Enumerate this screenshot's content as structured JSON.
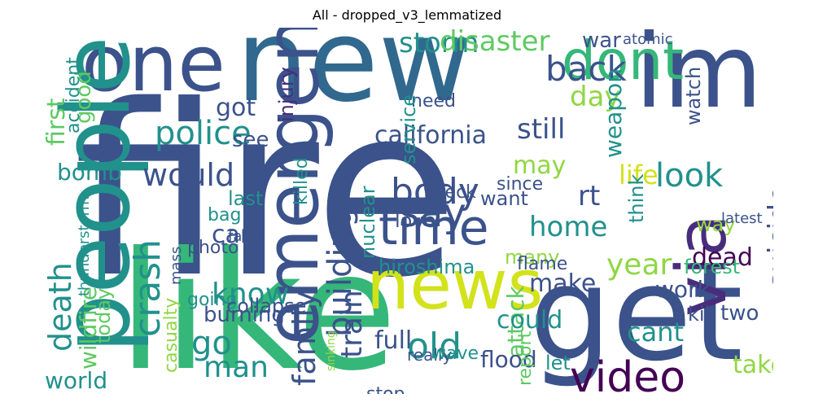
{
  "title": "All - dropped_v3_lemmatized",
  "palette": {
    "navy": "#3b528b",
    "blue": "#31688e",
    "teal": "#21918c",
    "green": "#35b779",
    "lime": "#90d743",
    "yellow": "#d2e21b",
    "purple": "#440154",
    "violet": "#472d7b",
    "cyan": "#2c728e",
    "mint": "#5ec962"
  },
  "words": [
    {
      "text": "fire",
      "c": "navy"
    },
    {
      "text": "new",
      "c": "blue"
    },
    {
      "text": "like",
      "c": "green"
    },
    {
      "text": "get",
      "c": "navy"
    },
    {
      "text": "one",
      "c": "navy"
    },
    {
      "text": "im",
      "c": "navy"
    },
    {
      "text": "via",
      "c": "violet"
    },
    {
      "text": "people",
      "c": "teal"
    },
    {
      "text": "emergency",
      "c": "navy"
    },
    {
      "text": "news",
      "c": "yellow"
    },
    {
      "text": "dont",
      "c": "green"
    },
    {
      "text": "video",
      "c": "purple"
    },
    {
      "text": "time",
      "c": "navy"
    },
    {
      "text": "storm",
      "c": "teal"
    },
    {
      "text": "disaster",
      "c": "mint"
    },
    {
      "text": "back",
      "c": "navy"
    },
    {
      "text": "police",
      "c": "teal"
    },
    {
      "text": "would",
      "c": "navy"
    },
    {
      "text": "say",
      "c": "navy"
    },
    {
      "text": "body",
      "c": "navy"
    },
    {
      "text": "home",
      "c": "teal"
    },
    {
      "text": "crash",
      "c": "teal"
    },
    {
      "text": "building",
      "c": "navy"
    },
    {
      "text": "death",
      "c": "teal"
    },
    {
      "text": "know",
      "c": "teal"
    },
    {
      "text": "family",
      "c": "navy"
    },
    {
      "text": "man",
      "c": "teal"
    },
    {
      "text": "year",
      "c": "lime"
    },
    {
      "text": "look",
      "c": "teal"
    },
    {
      "text": "still",
      "c": "navy"
    },
    {
      "text": "california",
      "c": "navy"
    },
    {
      "text": "train",
      "c": "navy"
    },
    {
      "text": "day",
      "c": "lime"
    },
    {
      "text": "suicide",
      "c": "navy"
    },
    {
      "text": "world",
      "c": "teal"
    },
    {
      "text": "attack",
      "c": "mint"
    },
    {
      "text": "flood",
      "c": "navy"
    },
    {
      "text": "make",
      "c": "navy"
    },
    {
      "text": "cant",
      "c": "teal"
    },
    {
      "text": "go",
      "c": "teal"
    },
    {
      "text": "got",
      "c": "navy"
    },
    {
      "text": "weapon",
      "c": "teal"
    },
    {
      "text": "life",
      "c": "yellow"
    },
    {
      "text": "may",
      "c": "lime"
    },
    {
      "text": "car",
      "c": "navy"
    },
    {
      "text": "bomb",
      "c": "teal"
    },
    {
      "text": "hiroshima",
      "c": "teal"
    },
    {
      "text": "war",
      "c": "navy"
    },
    {
      "text": "first",
      "c": "mint"
    },
    {
      "text": "good",
      "c": "mint"
    },
    {
      "text": "dead",
      "c": "purple"
    },
    {
      "text": "burning",
      "c": "navy"
    },
    {
      "text": "going",
      "c": "teal"
    },
    {
      "text": "full",
      "c": "navy"
    },
    {
      "text": "could",
      "c": "teal"
    },
    {
      "text": "old",
      "c": "teal"
    },
    {
      "text": "take",
      "c": "lime"
    },
    {
      "text": "injury",
      "c": "violet"
    },
    {
      "text": "see",
      "c": "navy"
    },
    {
      "text": "today",
      "c": "mint"
    },
    {
      "text": "wildfire",
      "c": "mint"
    },
    {
      "text": "nuclear",
      "c": "teal"
    },
    {
      "text": "killed",
      "c": "teal"
    },
    {
      "text": "want",
      "c": "navy"
    },
    {
      "text": "rt",
      "c": "navy"
    },
    {
      "text": "love",
      "c": "navy"
    },
    {
      "text": "two",
      "c": "navy"
    },
    {
      "text": "work",
      "c": "navy"
    },
    {
      "text": "let",
      "c": "teal"
    },
    {
      "text": "last",
      "c": "teal"
    },
    {
      "text": "need",
      "c": "navy"
    },
    {
      "text": "accident",
      "c": "teal"
    },
    {
      "text": "many",
      "c": "lime"
    },
    {
      "text": "service",
      "c": "teal"
    },
    {
      "text": "watch",
      "c": "navy"
    },
    {
      "text": "think",
      "c": "teal"
    },
    {
      "text": "atomic",
      "c": "navy"
    },
    {
      "text": "forest",
      "c": "green"
    },
    {
      "text": "report",
      "c": "mint"
    },
    {
      "text": "collapse",
      "c": "navy"
    },
    {
      "text": "casualty",
      "c": "lime"
    },
    {
      "text": "bag",
      "c": "teal"
    },
    {
      "text": "kill",
      "c": "navy"
    },
    {
      "text": "way",
      "c": "lime"
    },
    {
      "text": "since",
      "c": "navy"
    },
    {
      "text": "thunderstorm",
      "c": "teal"
    },
    {
      "text": "photo",
      "c": "navy"
    },
    {
      "text": "wreck",
      "c": "navy"
    },
    {
      "text": "really",
      "c": "navy"
    },
    {
      "text": "wave",
      "c": "teal"
    },
    {
      "text": "flame",
      "c": "navy"
    },
    {
      "text": "stop",
      "c": "navy"
    },
    {
      "text": "fatal",
      "c": "navy"
    },
    {
      "text": "latest",
      "c": "navy"
    },
    {
      "text": "mass",
      "c": "navy"
    },
    {
      "text": "sinking",
      "c": "lime"
    }
  ]
}
